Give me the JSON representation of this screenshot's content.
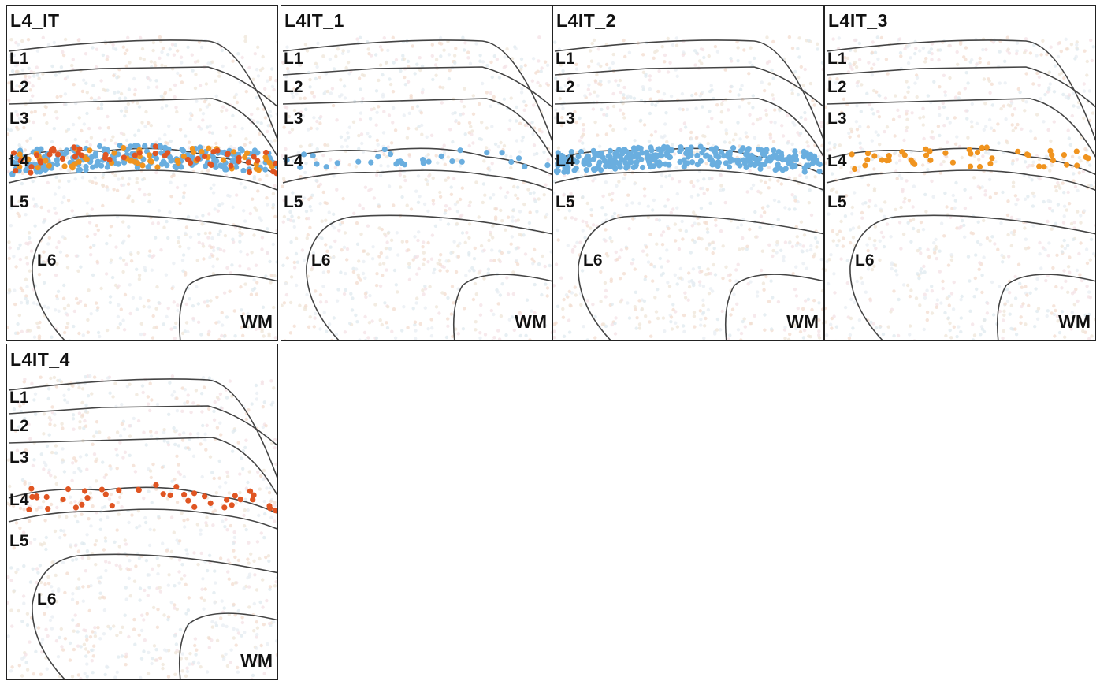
{
  "panels": [
    {
      "title": "L4_IT",
      "dots": "both",
      "spread": "full"
    },
    {
      "title": "L4IT_1",
      "dots": "blue",
      "spread": "sparse"
    },
    {
      "title": "L4IT_2",
      "dots": "blue",
      "spread": "dense"
    },
    {
      "title": "L4IT_3",
      "dots": "orange",
      "spread": "band"
    },
    {
      "title": "L4IT_4",
      "dots": "red",
      "spread": "band"
    }
  ],
  "layers": [
    "L1",
    "L2",
    "L3",
    "L4",
    "L5",
    "L6"
  ],
  "wm_label": "WM",
  "colors": {
    "blue": "#6aaedf",
    "orange": "#f0941f",
    "red": "#e05522",
    "boundary": "#444444"
  }
}
